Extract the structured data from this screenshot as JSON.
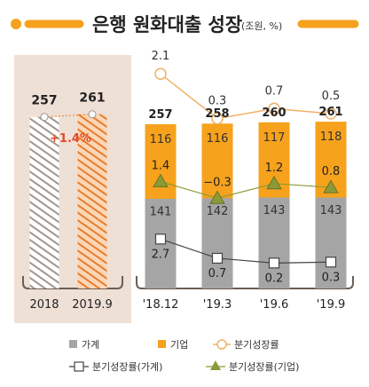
{
  "title": "은행 원화대출 성장",
  "unit": "(조원, %)",
  "colors": {
    "orange": "#f6a21d",
    "orange_dark": "#e87d2c",
    "gray": "#a5a5a5",
    "gray_text": "#333333",
    "annual_panel": "#efe0d6",
    "olive": "#8a9a38",
    "growth_line": "#f0b06a",
    "red": "#e24a2a"
  },
  "chart_data": [
    {
      "type": "bar",
      "categories": [
        "2018",
        "2019.9"
      ],
      "values": [
        257,
        261
      ],
      "annotation": "+1.4%"
    },
    {
      "type": "bar",
      "stacked": true,
      "categories": [
        "'18.12",
        "'19.3",
        "'19.6",
        "'19.9"
      ],
      "totals": [
        257,
        258,
        260,
        261
      ],
      "series": [
        {
          "name": "가계",
          "values": [
            141,
            142,
            143,
            143
          ],
          "color": "#a5a5a5"
        },
        {
          "name": "기업",
          "values": [
            116,
            116,
            117,
            118
          ],
          "color": "#f6a21d"
        }
      ],
      "lines": [
        {
          "name": "분기성장률",
          "values": [
            2.1,
            0.3,
            0.7,
            0.5
          ],
          "labels": [
            "2.1",
            "0.3",
            "0.7",
            "0.5"
          ],
          "marker": "circle"
        },
        {
          "name": "분기성장률(가계)",
          "values": [
            2.7,
            0.7,
            0.2,
            0.3
          ],
          "labels": [
            "2.7",
            "0.7",
            "0.2",
            "0.3"
          ],
          "marker": "square"
        },
        {
          "name": "분기성장률(기업)",
          "values": [
            1.4,
            -0.3,
            1.2,
            0.8
          ],
          "labels": [
            "1.4",
            "−0.3",
            "1.2",
            "0.8"
          ],
          "marker": "triangle"
        }
      ]
    }
  ],
  "legend": [
    {
      "label": "가계",
      "icon": "gray-square-icon"
    },
    {
      "label": "기업",
      "icon": "orange-square-icon"
    },
    {
      "label": "분기성장률",
      "icon": "circle-line-icon"
    },
    {
      "label": "분기성장률(가계)",
      "icon": "square-line-icon"
    },
    {
      "label": "분기성장률(기업)",
      "icon": "triangle-line-icon"
    }
  ]
}
